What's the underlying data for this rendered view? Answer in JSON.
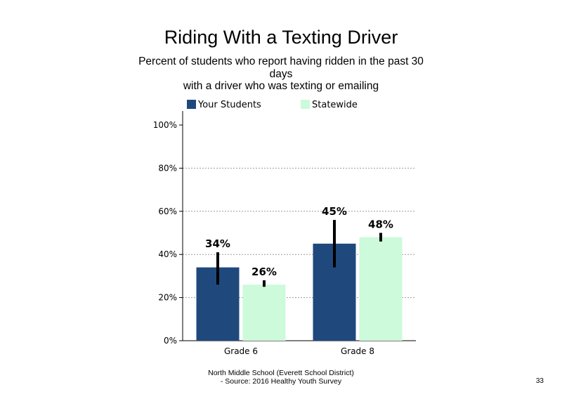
{
  "page": {
    "title": "Riding With a Texting Driver",
    "subtitle": "Percent of students who report having ridden in the past 30\ndays\nwith a driver who was texting or emailing",
    "footer": "North Middle School (Everett School District)\n - Source: 2016 Healthy Youth Survey",
    "page_number": "33"
  },
  "chart_data": {
    "type": "bar",
    "categories": [
      "Grade 6",
      "Grade 8"
    ],
    "series": [
      {
        "name": "Your Students",
        "color": "#1f497d",
        "values": [
          34,
          45
        ],
        "labels": [
          "34%",
          "45%"
        ],
        "error_low": [
          26,
          34
        ],
        "error_high": [
          41,
          56
        ]
      },
      {
        "name": "Statewide",
        "color": "#ccfadb",
        "values": [
          26,
          48
        ],
        "labels": [
          "26%",
          "48%"
        ],
        "error_low": [
          25,
          46
        ],
        "error_high": [
          28,
          50
        ]
      }
    ],
    "y_ticks": [
      0,
      20,
      40,
      60,
      80,
      100
    ],
    "y_tick_labels": [
      "0%",
      "20%",
      "40%",
      "60%",
      "80%",
      "100%"
    ],
    "ylim": [
      0,
      100
    ],
    "gridlines": "dotted",
    "legend_position": "top",
    "error_bar_color": "#000000"
  }
}
